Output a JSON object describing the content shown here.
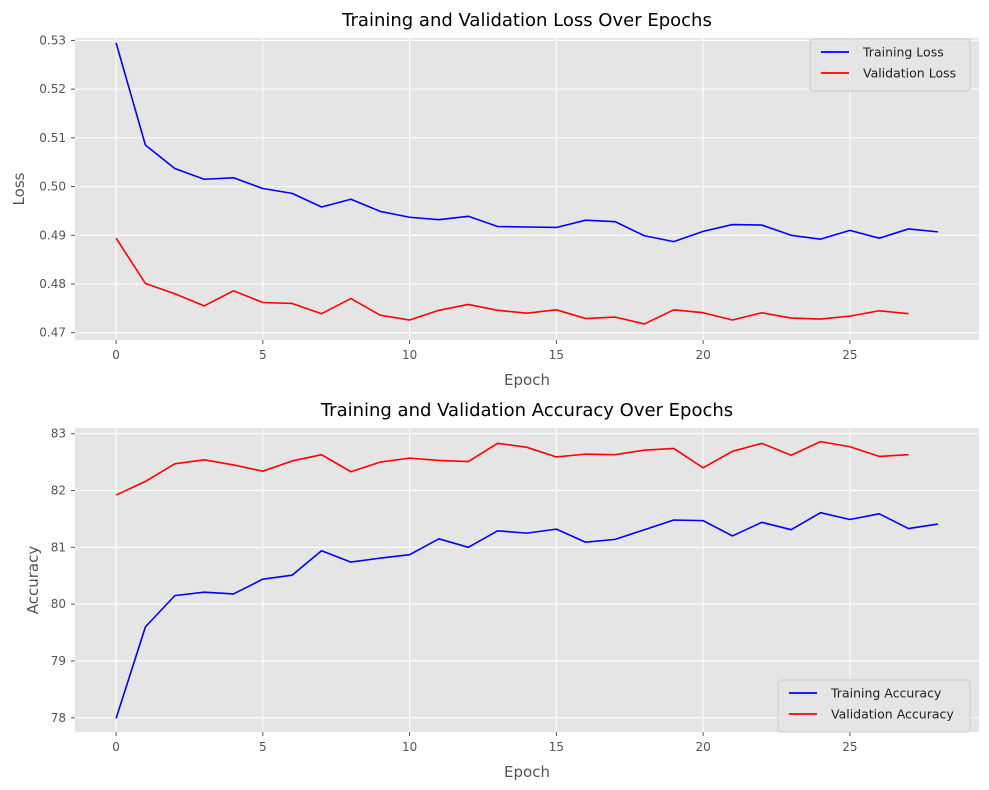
{
  "colors": {
    "background": "#ffffff",
    "plot_background": "#e5e5e5",
    "grid": "#ffffff",
    "training": "#0000ff",
    "validation": "#ff0000",
    "text": "#555555"
  },
  "chart_data": [
    {
      "type": "line",
      "title": "Training and Validation Loss Over Epochs",
      "xlabel": "Epoch",
      "ylabel": "Loss",
      "xlim": [
        -1.4,
        29.4
      ],
      "ylim": [
        0.4685,
        0.5305
      ],
      "xticks": [
        0,
        5,
        10,
        15,
        20,
        25
      ],
      "yticks": [
        0.47,
        0.48,
        0.49,
        0.5,
        0.51,
        0.52,
        0.53
      ],
      "ytick_labels": [
        "0.47",
        "0.48",
        "0.49",
        "0.50",
        "0.51",
        "0.52",
        "0.53"
      ],
      "grid": true,
      "legend": "top-right",
      "series": [
        {
          "name": "Training Loss",
          "color": "#0000ff",
          "x": [
            0,
            1,
            2,
            3,
            4,
            5,
            6,
            7,
            8,
            9,
            10,
            11,
            12,
            13,
            14,
            15,
            16,
            17,
            18,
            19,
            20,
            21,
            22,
            23,
            24,
            25,
            26,
            27,
            28
          ],
          "y": [
            0.5295,
            0.5085,
            0.5037,
            0.5015,
            0.5018,
            0.4996,
            0.4986,
            0.4958,
            0.4974,
            0.4949,
            0.4937,
            0.4932,
            0.4939,
            0.4918,
            0.4917,
            0.4916,
            0.4931,
            0.4928,
            0.4899,
            0.4887,
            0.4908,
            0.4922,
            0.4921,
            0.49,
            0.4892,
            0.491,
            0.4894,
            0.4913,
            0.4907
          ]
        },
        {
          "name": "Validation Loss",
          "color": "#ff0000",
          "x": [
            0,
            1,
            2,
            3,
            4,
            5,
            6,
            7,
            8,
            9,
            10,
            11,
            12,
            13,
            14,
            15,
            16,
            17,
            18,
            19,
            20,
            21,
            22,
            23,
            24,
            25,
            26,
            27
          ],
          "y": [
            0.4894,
            0.4801,
            0.478,
            0.4755,
            0.4786,
            0.4762,
            0.476,
            0.4739,
            0.477,
            0.4736,
            0.4726,
            0.4746,
            0.4758,
            0.4746,
            0.474,
            0.4747,
            0.4729,
            0.4732,
            0.4718,
            0.4747,
            0.4741,
            0.4726,
            0.4741,
            0.473,
            0.4728,
            0.4734,
            0.4745,
            0.4739
          ]
        }
      ]
    },
    {
      "type": "line",
      "title": "Training and Validation Accuracy Over Epochs",
      "xlabel": "Epoch",
      "ylabel": "Accuracy",
      "xlim": [
        -1.4,
        29.4
      ],
      "ylim": [
        77.75,
        83.1
      ],
      "xticks": [
        0,
        5,
        10,
        15,
        20,
        25
      ],
      "yticks": [
        78,
        79,
        80,
        81,
        82,
        83
      ],
      "ytick_labels": [
        "78",
        "79",
        "80",
        "81",
        "82",
        "83"
      ],
      "grid": true,
      "legend": "bottom-right",
      "series": [
        {
          "name": "Training Accuracy",
          "color": "#0000ff",
          "x": [
            0,
            1,
            2,
            3,
            4,
            5,
            6,
            7,
            8,
            9,
            10,
            11,
            12,
            13,
            14,
            15,
            16,
            17,
            18,
            19,
            20,
            21,
            22,
            23,
            24,
            25,
            26,
            27,
            28
          ],
          "y": [
            77.99,
            79.6,
            80.15,
            80.21,
            80.18,
            80.44,
            80.51,
            80.94,
            80.74,
            80.81,
            80.87,
            81.15,
            81.0,
            81.29,
            81.25,
            81.32,
            81.09,
            81.14,
            81.31,
            81.48,
            81.47,
            81.2,
            81.44,
            81.31,
            81.61,
            81.49,
            81.59,
            81.33,
            81.41
          ]
        },
        {
          "name": "Validation Accuracy",
          "color": "#ff0000",
          "x": [
            0,
            1,
            2,
            3,
            4,
            5,
            6,
            7,
            8,
            9,
            10,
            11,
            12,
            13,
            14,
            15,
            16,
            17,
            18,
            19,
            20,
            21,
            22,
            23,
            24,
            25,
            26,
            27
          ],
          "y": [
            81.92,
            82.16,
            82.47,
            82.54,
            82.45,
            82.34,
            82.52,
            82.63,
            82.33,
            82.5,
            82.57,
            82.53,
            82.51,
            82.83,
            82.76,
            82.59,
            82.64,
            82.63,
            82.71,
            82.74,
            82.4,
            82.69,
            82.83,
            82.62,
            82.86,
            82.77,
            82.6,
            82.63
          ]
        }
      ]
    }
  ]
}
